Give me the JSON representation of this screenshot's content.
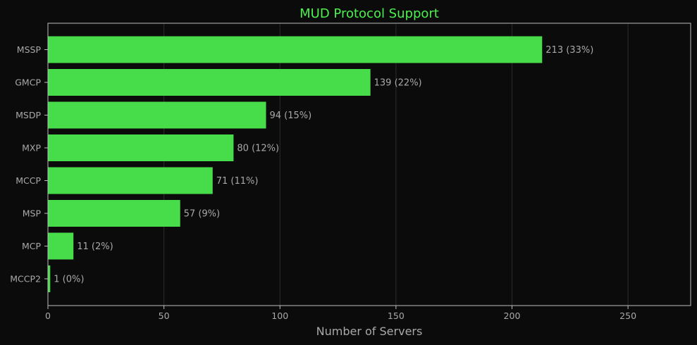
{
  "colors": {
    "background": "#0b0b0b",
    "bar": "#47dd4a",
    "title": "#4cf04f",
    "text": "#a9a9a9",
    "axis": "#bdbdbd",
    "grid": "#2c2c2c"
  },
  "chart_data": {
    "type": "bar",
    "orientation": "horizontal",
    "title": "MUD Protocol Support",
    "xlabel": "Number of Servers",
    "ylabel": "",
    "xlim": [
      0,
      277
    ],
    "xticks": [
      "0",
      "50",
      "100",
      "150",
      "200",
      "250"
    ],
    "xtick_values": [
      0,
      50,
      100,
      150,
      200,
      250
    ],
    "grid": "vertical",
    "categories": [
      "MSSP",
      "GMCP",
      "MSDP",
      "MXP",
      "MCCP",
      "MSP",
      "MCP",
      "MCCP2"
    ],
    "values": [
      213,
      139,
      94,
      80,
      71,
      57,
      11,
      1
    ],
    "data_labels": [
      "213 (33%)",
      "139 (22%)",
      "94 (15%)",
      "80 (12%)",
      "71 (11%)",
      "57 (9%)",
      "11 (2%)",
      "1 (0%)"
    ]
  }
}
